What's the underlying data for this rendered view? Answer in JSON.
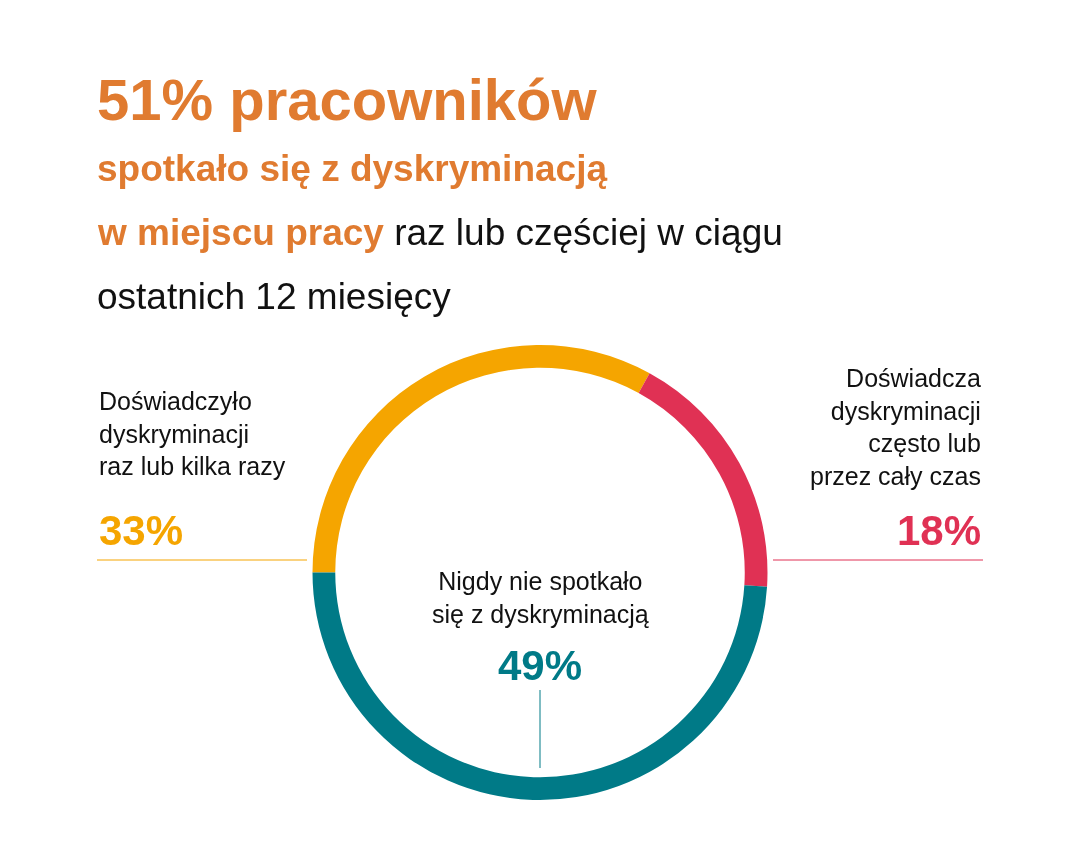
{
  "chart_data": {
    "type": "donut",
    "title": "51% pracowników spotkało się z dyskryminacją w miejscu pracy",
    "subtitle": "raz lub częściej w ciągu ostatnich 12 miesięcy",
    "categories": [
      "Doświadczyło dyskryminacji raz lub kilka razy",
      "Doświadcza dyskryminacji często lub przez cały czas",
      "Nigdy nie spotkało się z dyskryminacją"
    ],
    "values": [
      33,
      18,
      49
    ],
    "value_labels": [
      "33%",
      "18%",
      "49%"
    ],
    "colors": [
      "#f5a500",
      "#e03154",
      "#007a87"
    ],
    "legend": false
  }
}
